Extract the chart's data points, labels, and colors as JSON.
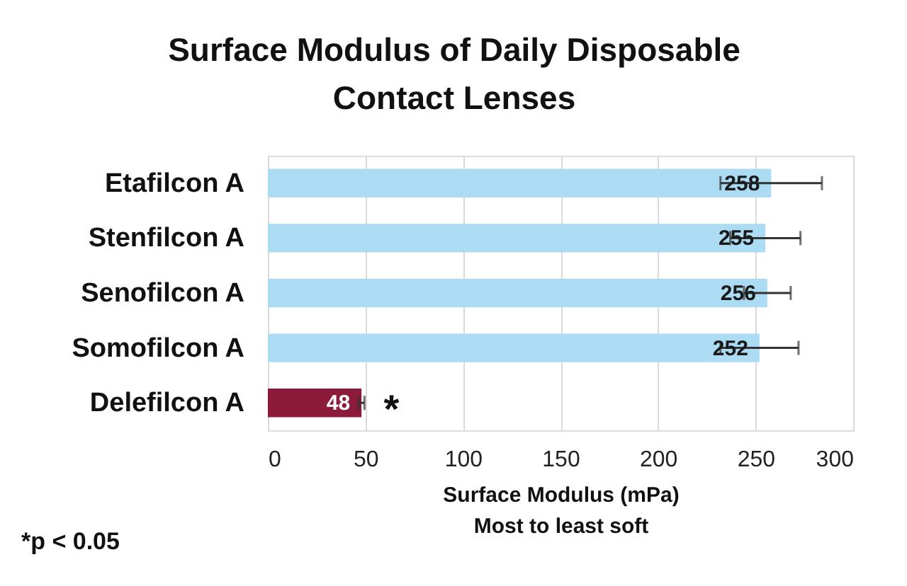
{
  "chart_data": {
    "type": "bar",
    "orientation": "horizontal",
    "title": "Surface Modulus of Daily Disposable Contact Lenses",
    "xlabel": "Surface Modulus (mPa)\nMost to least soft",
    "categories": [
      "Etafilcon A",
      "Stenfilcon A",
      "Senofilcon A",
      "Somofilcon A",
      "Delefilcon A"
    ],
    "values": [
      258,
      255,
      256,
      252,
      48
    ],
    "colors": [
      "#acdcf3",
      "#acdcf3",
      "#acdcf3",
      "#acdcf3",
      "#8b1a3b"
    ],
    "errors": [
      26,
      18,
      12,
      20,
      1.5
    ],
    "xlim": [
      0,
      300
    ],
    "xticks": [
      0,
      50,
      100,
      150,
      200,
      250,
      300
    ],
    "grid": "x",
    "data_labels": true,
    "annotations": [
      "*",
      "*p < 0.05"
    ]
  }
}
